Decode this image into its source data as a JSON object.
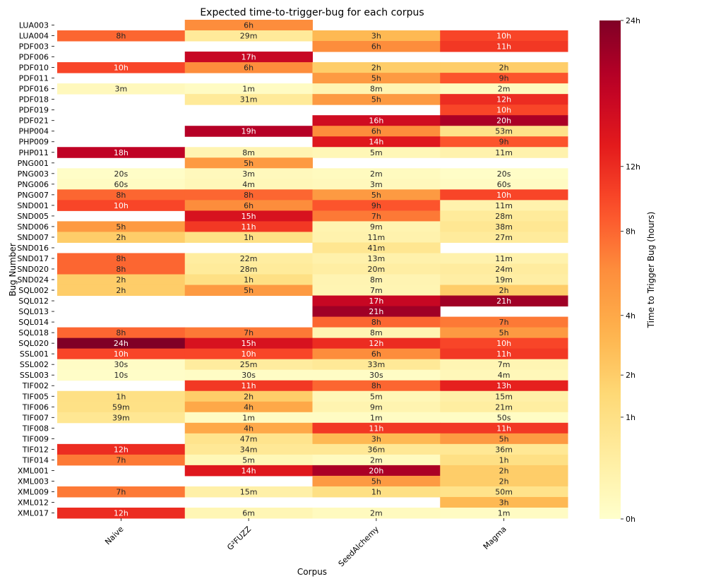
{
  "chart_data": {
    "type": "heatmap",
    "title": "Expected time-to-trigger-bug for each corpus",
    "xlabel": "Corpus",
    "ylabel": "Bug Number",
    "colorbar_label": "Time to Trigger Bug (hours)",
    "colormap": "YlOrRd",
    "colorbar_scale": "sqrt",
    "colorbar_range_hours": [
      0,
      24
    ],
    "colorbar_ticks": [
      {
        "hours": 0,
        "label": "0h"
      },
      {
        "hours": 1,
        "label": "1h"
      },
      {
        "hours": 2,
        "label": "2h"
      },
      {
        "hours": 4,
        "label": "4h"
      },
      {
        "hours": 8,
        "label": "8h"
      },
      {
        "hours": 12,
        "label": "12h"
      },
      {
        "hours": 24,
        "label": "24h"
      }
    ],
    "columns": [
      "Naive",
      "G²FUZZ",
      "SeedAlchemy",
      "Magma"
    ],
    "rows": [
      {
        "bug": "LUA003",
        "cells": [
          null,
          "6h",
          null,
          null
        ]
      },
      {
        "bug": "LUA004",
        "cells": [
          "8h",
          "29m",
          "3h",
          "10h"
        ]
      },
      {
        "bug": "PDF003",
        "cells": [
          null,
          null,
          "6h",
          "11h"
        ]
      },
      {
        "bug": "PDF006",
        "cells": [
          null,
          "17h",
          null,
          null
        ]
      },
      {
        "bug": "PDF010",
        "cells": [
          "10h",
          "6h",
          "2h",
          "2h"
        ]
      },
      {
        "bug": "PDF011",
        "cells": [
          null,
          null,
          "5h",
          "9h"
        ]
      },
      {
        "bug": "PDF016",
        "cells": [
          "3m",
          "1m",
          "8m",
          "2m"
        ]
      },
      {
        "bug": "PDF018",
        "cells": [
          null,
          "31m",
          "5h",
          "12h"
        ]
      },
      {
        "bug": "PDF019",
        "cells": [
          null,
          null,
          null,
          "10h"
        ]
      },
      {
        "bug": "PDF021",
        "cells": [
          null,
          null,
          "16h",
          "20h"
        ]
      },
      {
        "bug": "PHP004",
        "cells": [
          null,
          "19h",
          "6h",
          "53m"
        ]
      },
      {
        "bug": "PHP009",
        "cells": [
          null,
          null,
          "14h",
          "9h"
        ]
      },
      {
        "bug": "PHP011",
        "cells": [
          "18h",
          "8m",
          "5m",
          "11m"
        ]
      },
      {
        "bug": "PNG001",
        "cells": [
          null,
          "5h",
          null,
          null
        ]
      },
      {
        "bug": "PNG003",
        "cells": [
          "20s",
          "3m",
          "2m",
          "20s"
        ]
      },
      {
        "bug": "PNG006",
        "cells": [
          "60s",
          "4m",
          "3m",
          "60s"
        ]
      },
      {
        "bug": "PNG007",
        "cells": [
          "8h",
          "8h",
          "5h",
          "10h"
        ]
      },
      {
        "bug": "SND001",
        "cells": [
          "10h",
          "6h",
          "9h",
          "11m"
        ]
      },
      {
        "bug": "SND005",
        "cells": [
          null,
          "15h",
          "7h",
          "28m"
        ]
      },
      {
        "bug": "SND006",
        "cells": [
          "5h",
          "11h",
          "9m",
          "38m"
        ]
      },
      {
        "bug": "SND007",
        "cells": [
          "2h",
          "1h",
          "11m",
          "27m"
        ]
      },
      {
        "bug": "SND016",
        "cells": [
          null,
          null,
          "41m",
          null
        ]
      },
      {
        "bug": "SND017",
        "cells": [
          "8h",
          "22m",
          "13m",
          "11m"
        ]
      },
      {
        "bug": "SND020",
        "cells": [
          "8h",
          "28m",
          "20m",
          "24m"
        ]
      },
      {
        "bug": "SND024",
        "cells": [
          "2h",
          "1h",
          "8m",
          "19m"
        ]
      },
      {
        "bug": "SQL002",
        "cells": [
          "2h",
          "5h",
          "7m",
          "2h"
        ]
      },
      {
        "bug": "SQL012",
        "cells": [
          null,
          null,
          "17h",
          "21h"
        ]
      },
      {
        "bug": "SQL013",
        "cells": [
          null,
          null,
          "21h",
          null
        ]
      },
      {
        "bug": "SQL014",
        "cells": [
          null,
          null,
          "8h",
          "7h"
        ]
      },
      {
        "bug": "SQL018",
        "cells": [
          "8h",
          "7h",
          "8m",
          "5h"
        ]
      },
      {
        "bug": "SQL020",
        "cells": [
          "24h",
          "15h",
          "12h",
          "10h"
        ]
      },
      {
        "bug": "SSL001",
        "cells": [
          "10h",
          "10h",
          "6h",
          "11h"
        ]
      },
      {
        "bug": "SSL002",
        "cells": [
          "30s",
          "25m",
          "33m",
          "7m"
        ]
      },
      {
        "bug": "SSL003",
        "cells": [
          "10s",
          "30s",
          "30s",
          "4m"
        ]
      },
      {
        "bug": "TIF002",
        "cells": [
          null,
          "11h",
          "8h",
          "13h"
        ]
      },
      {
        "bug": "TIF005",
        "cells": [
          "1h",
          "2h",
          "5m",
          "15m"
        ]
      },
      {
        "bug": "TIF006",
        "cells": [
          "59m",
          "4h",
          "9m",
          "21m"
        ]
      },
      {
        "bug": "TIF007",
        "cells": [
          "39m",
          "1m",
          "1m",
          "50s"
        ]
      },
      {
        "bug": "TIF008",
        "cells": [
          null,
          "4h",
          "11h",
          "11h"
        ]
      },
      {
        "bug": "TIF009",
        "cells": [
          null,
          "47m",
          "3h",
          "5h"
        ]
      },
      {
        "bug": "TIF012",
        "cells": [
          "12h",
          "34m",
          "36m",
          "36m"
        ]
      },
      {
        "bug": "TIF014",
        "cells": [
          "7h",
          "5m",
          "2m",
          "1h"
        ]
      },
      {
        "bug": "XML001",
        "cells": [
          null,
          "14h",
          "20h",
          "2h"
        ]
      },
      {
        "bug": "XML003",
        "cells": [
          null,
          null,
          "5h",
          "2h"
        ]
      },
      {
        "bug": "XML009",
        "cells": [
          "7h",
          "15m",
          "1h",
          "50m"
        ]
      },
      {
        "bug": "XML012",
        "cells": [
          null,
          null,
          null,
          "3h"
        ]
      },
      {
        "bug": "XML017",
        "cells": [
          "12h",
          "6m",
          "2m",
          "1m"
        ]
      }
    ]
  }
}
